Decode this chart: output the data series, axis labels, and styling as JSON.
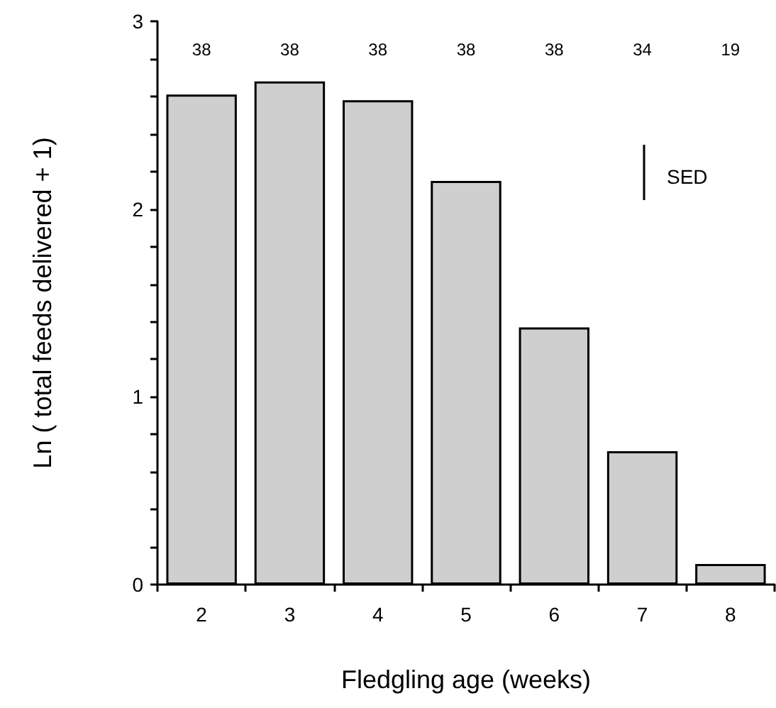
{
  "chart_data": {
    "type": "bar",
    "xlabel": "Fledgling age (weeks)",
    "ylabel": "Ln ( total feeds delivered + 1)",
    "categories": [
      "2",
      "3",
      "4",
      "5",
      "6",
      "7",
      "8"
    ],
    "values": [
      2.61,
      2.68,
      2.58,
      2.15,
      1.37,
      0.71,
      0.11
    ],
    "color": "#cfcfcf",
    "ylim": [
      0,
      3
    ],
    "yticks": [
      0,
      {
        "value": 0.2,
        "label": null
      },
      {
        "value": 0.4,
        "label": null
      },
      {
        "value": 0.6,
        "label": null
      },
      {
        "value": 0.8,
        "label": null
      },
      1,
      {
        "value": 1.2,
        "label": null
      },
      {
        "value": 1.4,
        "label": null
      },
      {
        "value": 1.6,
        "label": null
      },
      {
        "value": 1.8,
        "label": null
      },
      2,
      {
        "value": 2.2,
        "label": null
      },
      {
        "value": 2.4,
        "label": null
      },
      {
        "value": 2.6,
        "label": null
      },
      {
        "value": 2.8,
        "label": null
      },
      3
    ],
    "grid": false,
    "annotations": [
      "38",
      "38",
      "38",
      "38",
      "38",
      "34",
      "19",
      "SED"
    ]
  }
}
